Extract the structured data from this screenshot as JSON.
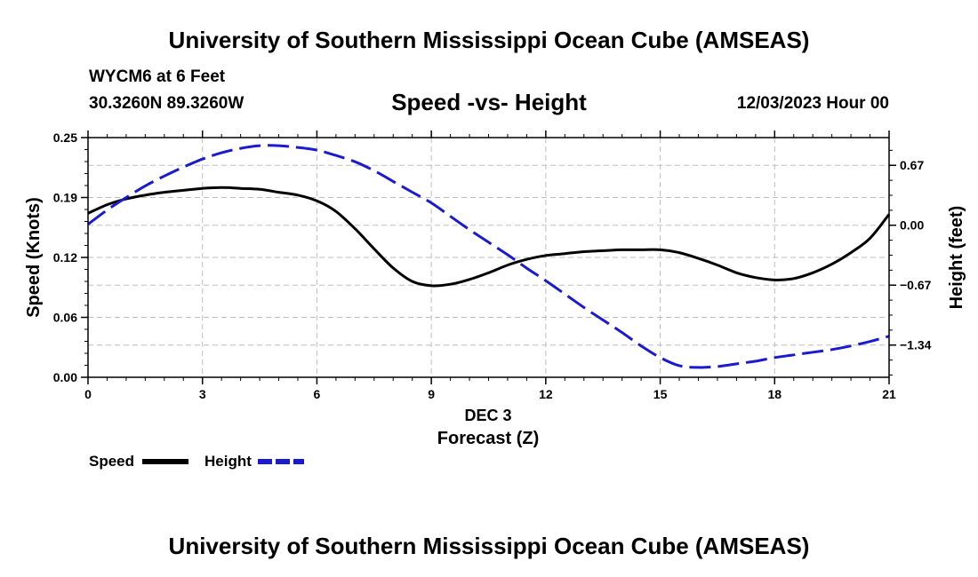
{
  "header": {
    "title": "University of Southern Mississippi Ocean Cube (AMSEAS)",
    "station": "WYCM6 at 6 Feet",
    "coords": "30.3260N  89.3260W",
    "subtitle": "Speed -vs- Height",
    "datetime": "12/03/2023 Hour 00"
  },
  "footer": {
    "title": "University of Southern Mississippi Ocean Cube (AMSEAS)"
  },
  "chart_data": {
    "type": "line",
    "title": "Speed -vs- Height",
    "xlabel": "Forecast (Z)",
    "xlabel_date": "DEC 3",
    "ylabel": "Speed (Knots)",
    "y2label": "Height (feet)",
    "xlim": [
      0,
      21
    ],
    "ylim": [
      0,
      0.25
    ],
    "y2lim": [
      -1.7,
      0.98
    ],
    "x_ticks": [
      0,
      3,
      6,
      9,
      12,
      15,
      18,
      21
    ],
    "x_tick_labels": [
      "0",
      "3",
      "6",
      "9",
      "12",
      "15",
      "18",
      "21"
    ],
    "y_ticks": [
      0.0,
      0.0625,
      0.125,
      0.1875,
      0.25
    ],
    "y_tick_labels": [
      "0.00",
      "0.06",
      "0.12",
      "0.19",
      "0.25"
    ],
    "y2_ticks": [
      0.67,
      0.0,
      -0.67,
      -1.34
    ],
    "y2_tick_labels": [
      "0.67",
      "0.00",
      "−0.67",
      "−1.34"
    ],
    "grid": true,
    "legend": "bottom-left",
    "series": [
      {
        "name": "Speed",
        "axis": "left",
        "color": "#000000",
        "dash": "solid",
        "x": [
          0,
          0.5,
          1,
          1.5,
          2,
          2.5,
          3,
          3.5,
          4,
          4.5,
          5,
          5.5,
          6,
          6.5,
          7,
          7.5,
          8,
          8.5,
          9,
          9.5,
          10,
          10.5,
          11,
          11.5,
          12,
          12.5,
          13,
          13.5,
          14,
          14.5,
          15,
          15.5,
          16,
          16.5,
          17,
          17.5,
          18,
          18.5,
          19,
          19.5,
          20,
          20.5,
          21
        ],
        "values": [
          0.171,
          0.18,
          0.186,
          0.19,
          0.193,
          0.195,
          0.197,
          0.198,
          0.197,
          0.196,
          0.193,
          0.19,
          0.184,
          0.173,
          0.155,
          0.134,
          0.114,
          0.1,
          0.0955,
          0.097,
          0.102,
          0.109,
          0.117,
          0.123,
          0.127,
          0.129,
          0.131,
          0.132,
          0.133,
          0.133,
          0.133,
          0.13,
          0.124,
          0.117,
          0.109,
          0.104,
          0.1015,
          0.103,
          0.109,
          0.118,
          0.13,
          0.145,
          0.17
        ]
      },
      {
        "name": "Height",
        "axis": "right",
        "color": "#1a1ad0",
        "dash": "dashed",
        "x": [
          0,
          0.5,
          1,
          1.5,
          2,
          2.5,
          3,
          3.5,
          4,
          4.5,
          5,
          5.5,
          6,
          6.5,
          7,
          7.5,
          8,
          8.5,
          9,
          9.5,
          10,
          10.5,
          11,
          11.5,
          12,
          12.5,
          13,
          13.5,
          14,
          14.5,
          15,
          15.5,
          16,
          16.5,
          17,
          17.5,
          18,
          18.5,
          19,
          19.5,
          20,
          20.5,
          21
        ],
        "values": [
          0.01,
          0.17,
          0.31,
          0.44,
          0.55,
          0.65,
          0.74,
          0.81,
          0.86,
          0.89,
          0.89,
          0.87,
          0.84,
          0.78,
          0.71,
          0.61,
          0.49,
          0.37,
          0.25,
          0.1,
          -0.05,
          -0.19,
          -0.33,
          -0.48,
          -0.62,
          -0.77,
          -0.92,
          -1.06,
          -1.2,
          -1.35,
          -1.48,
          -1.57,
          -1.59,
          -1.58,
          -1.55,
          -1.52,
          -1.48,
          -1.45,
          -1.42,
          -1.39,
          -1.35,
          -1.3,
          -1.24
        ]
      }
    ]
  }
}
